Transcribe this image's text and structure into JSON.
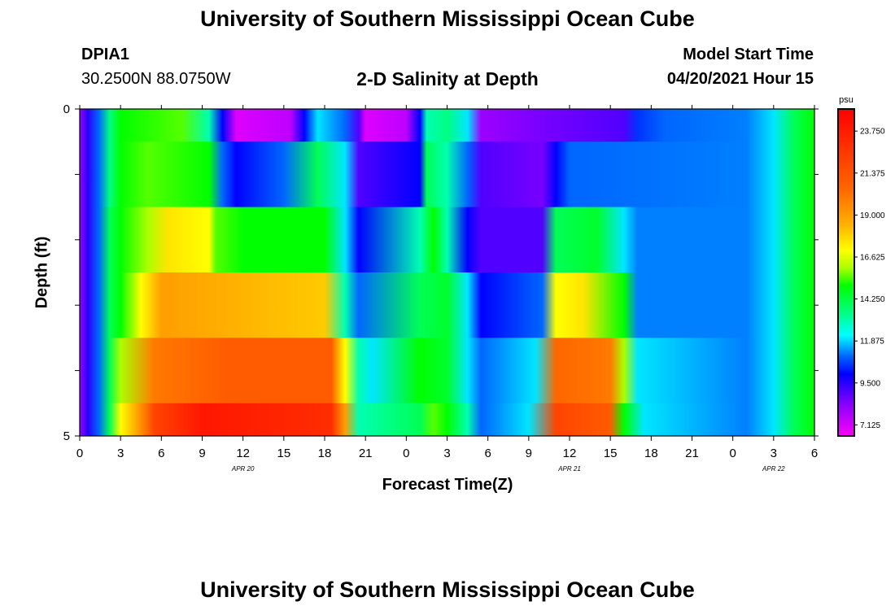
{
  "header": {
    "title_top": "University of Southern Mississippi Ocean Cube",
    "title_bottom": "University of Southern Mississippi Ocean Cube",
    "station_id": "DPIA1",
    "station_coords": "30.2500N  88.0750W",
    "model_start_label": "Model Start Time",
    "model_start_value": "04/20/2021 Hour 15"
  },
  "chart_data": {
    "type": "heatmap",
    "title": "2-D Salinity at Depth",
    "xlabel": "Forecast Time(Z)",
    "ylabel": "Depth (ft)",
    "x_tick_labels": [
      "0",
      "3",
      "6",
      "9",
      "12",
      "15",
      "18",
      "21",
      "0",
      "3",
      "6",
      "9",
      "12",
      "15",
      "18",
      "21",
      "0",
      "3",
      "6"
    ],
    "x_range_hours": [
      0,
      54
    ],
    "date_labels": [
      {
        "label": "APR 20",
        "hour": 12
      },
      {
        "label": "APR 21",
        "hour": 36
      },
      {
        "label": "APR 22",
        "hour": 51
      }
    ],
    "y_tick_labels": [
      "0",
      "5"
    ],
    "ylim": [
      0,
      5
    ],
    "depth_layers": [
      0.5,
      1.5,
      2.5,
      3.5,
      4.5,
      5.0
    ],
    "colorbar": {
      "unit": "psu",
      "vmin": 6.5,
      "vmax": 25.0,
      "tick_values": [
        "23.750",
        "21.375",
        "19.000",
        "16.625",
        "14.250",
        "11.875",
        "9.500",
        "7.125"
      ],
      "stops": [
        {
          "v": 6.5,
          "c": "#ff00ff"
        },
        {
          "v": 8.3,
          "c": "#8800ff"
        },
        {
          "v": 10.0,
          "c": "#0000ff"
        },
        {
          "v": 11.0,
          "c": "#0066ff"
        },
        {
          "v": 12.2,
          "c": "#00ffff"
        },
        {
          "v": 13.5,
          "c": "#00ff80"
        },
        {
          "v": 15.0,
          "c": "#00ff00"
        },
        {
          "v": 16.0,
          "c": "#aaff00"
        },
        {
          "v": 17.0,
          "c": "#ffff00"
        },
        {
          "v": 18.5,
          "c": "#ffb000"
        },
        {
          "v": 20.5,
          "c": "#ff6600"
        },
        {
          "v": 25.0,
          "c": "#ff0000"
        }
      ]
    },
    "series": [
      {
        "name": "row1_surface",
        "segments": [
          [
            0.0,
            8
          ],
          [
            0.6,
            9.5
          ],
          [
            1.4,
            11
          ],
          [
            2.2,
            13.5
          ],
          [
            3.0,
            15
          ],
          [
            7.5,
            15.5
          ],
          [
            9.5,
            13
          ],
          [
            10.5,
            10
          ],
          [
            11.5,
            7
          ],
          [
            15.5,
            7.5
          ],
          [
            16.5,
            10
          ],
          [
            17.5,
            12
          ],
          [
            19.5,
            11
          ],
          [
            20.5,
            9
          ],
          [
            21.0,
            7
          ],
          [
            24.0,
            7.5
          ],
          [
            25.0,
            10
          ],
          [
            25.5,
            13
          ],
          [
            27.0,
            13.5
          ],
          [
            28.5,
            12
          ],
          [
            29.5,
            8
          ],
          [
            34.0,
            8.5
          ],
          [
            40.0,
            9
          ],
          [
            41.0,
            10.5
          ],
          [
            43.0,
            11
          ],
          [
            49.0,
            11.2
          ],
          [
            51.0,
            12
          ],
          [
            52.5,
            14
          ],
          [
            54.0,
            15
          ]
        ]
      },
      {
        "name": "row2",
        "segments": [
          [
            0.0,
            8
          ],
          [
            0.6,
            9.5
          ],
          [
            1.4,
            11
          ],
          [
            2.2,
            13.5
          ],
          [
            3.0,
            15
          ],
          [
            5.0,
            15.5
          ],
          [
            9.5,
            15
          ],
          [
            10.5,
            11
          ],
          [
            11.5,
            10
          ],
          [
            15.0,
            11
          ],
          [
            17.5,
            14
          ],
          [
            19.5,
            12
          ],
          [
            20.5,
            9
          ],
          [
            25.0,
            10
          ],
          [
            25.5,
            14
          ],
          [
            27.0,
            13
          ],
          [
            28.5,
            11
          ],
          [
            29.5,
            9
          ],
          [
            34.0,
            8.5
          ],
          [
            35.0,
            10
          ],
          [
            36.0,
            11
          ],
          [
            49.0,
            11.2
          ],
          [
            51.0,
            12
          ],
          [
            52.5,
            14
          ],
          [
            54.0,
            15
          ]
        ]
      },
      {
        "name": "row3",
        "segments": [
          [
            0.0,
            8
          ],
          [
            0.6,
            9.5
          ],
          [
            1.4,
            11
          ],
          [
            2.2,
            14
          ],
          [
            3.0,
            15
          ],
          [
            5.0,
            16
          ],
          [
            6.5,
            17.5
          ],
          [
            9.5,
            17
          ],
          [
            10.0,
            15.5
          ],
          [
            12.0,
            15
          ],
          [
            18.0,
            15
          ],
          [
            19.5,
            12
          ],
          [
            20.5,
            10
          ],
          [
            25.0,
            13
          ],
          [
            26.0,
            15
          ],
          [
            27.0,
            13
          ],
          [
            28.5,
            10
          ],
          [
            29.5,
            9
          ],
          [
            34.0,
            9
          ],
          [
            35.0,
            14
          ],
          [
            38.0,
            14.5
          ],
          [
            40.0,
            12
          ],
          [
            41.0,
            11.2
          ],
          [
            49.0,
            11.2
          ],
          [
            51.0,
            12
          ],
          [
            52.5,
            14
          ],
          [
            54.0,
            15
          ]
        ]
      },
      {
        "name": "row4",
        "segments": [
          [
            0.0,
            8
          ],
          [
            0.6,
            9.5
          ],
          [
            1.4,
            11
          ],
          [
            2.2,
            14
          ],
          [
            3.0,
            15
          ],
          [
            4.5,
            17
          ],
          [
            6.0,
            19
          ],
          [
            11.0,
            18.5
          ],
          [
            18.0,
            18
          ],
          [
            19.5,
            13
          ],
          [
            20.5,
            11
          ],
          [
            25.0,
            14
          ],
          [
            27.0,
            14.5
          ],
          [
            28.5,
            12
          ],
          [
            29.5,
            10
          ],
          [
            34.0,
            11
          ],
          [
            35.0,
            17
          ],
          [
            37.0,
            17.5
          ],
          [
            40.0,
            15
          ],
          [
            41.0,
            11.2
          ],
          [
            49.0,
            11.2
          ],
          [
            51.0,
            12
          ],
          [
            52.5,
            14
          ],
          [
            54.0,
            15
          ]
        ]
      },
      {
        "name": "row5",
        "segments": [
          [
            0.0,
            8
          ],
          [
            0.6,
            9.5
          ],
          [
            1.4,
            11
          ],
          [
            2.2,
            14
          ],
          [
            3.0,
            16
          ],
          [
            5.5,
            20
          ],
          [
            11.0,
            21
          ],
          [
            18.5,
            21
          ],
          [
            19.5,
            17
          ],
          [
            20.5,
            13
          ],
          [
            21.5,
            12
          ],
          [
            25.0,
            15
          ],
          [
            27.0,
            14.5
          ],
          [
            28.5,
            12
          ],
          [
            29.5,
            11
          ],
          [
            33.5,
            12
          ],
          [
            35.0,
            20.5
          ],
          [
            39.0,
            20
          ],
          [
            40.0,
            16
          ],
          [
            41.0,
            12
          ],
          [
            49.0,
            11.2
          ],
          [
            51.0,
            12
          ],
          [
            52.5,
            14
          ],
          [
            54.0,
            15
          ]
        ]
      },
      {
        "name": "row6_bottom",
        "segments": [
          [
            0.0,
            8
          ],
          [
            0.6,
            9.5
          ],
          [
            1.4,
            11
          ],
          [
            2.2,
            14
          ],
          [
            3.0,
            17
          ],
          [
            5.5,
            22
          ],
          [
            9.0,
            24
          ],
          [
            18.5,
            23
          ],
          [
            19.5,
            19
          ],
          [
            20.5,
            13
          ],
          [
            25.0,
            14
          ],
          [
            26.0,
            15.5
          ],
          [
            27.0,
            15
          ],
          [
            28.5,
            13
          ],
          [
            29.5,
            11
          ],
          [
            33.0,
            12
          ],
          [
            35.0,
            22
          ],
          [
            39.0,
            21
          ],
          [
            40.0,
            15
          ],
          [
            41.5,
            12
          ],
          [
            49.0,
            11.2
          ],
          [
            51.0,
            12
          ],
          [
            52.5,
            14
          ],
          [
            54.0,
            15
          ]
        ]
      }
    ]
  }
}
